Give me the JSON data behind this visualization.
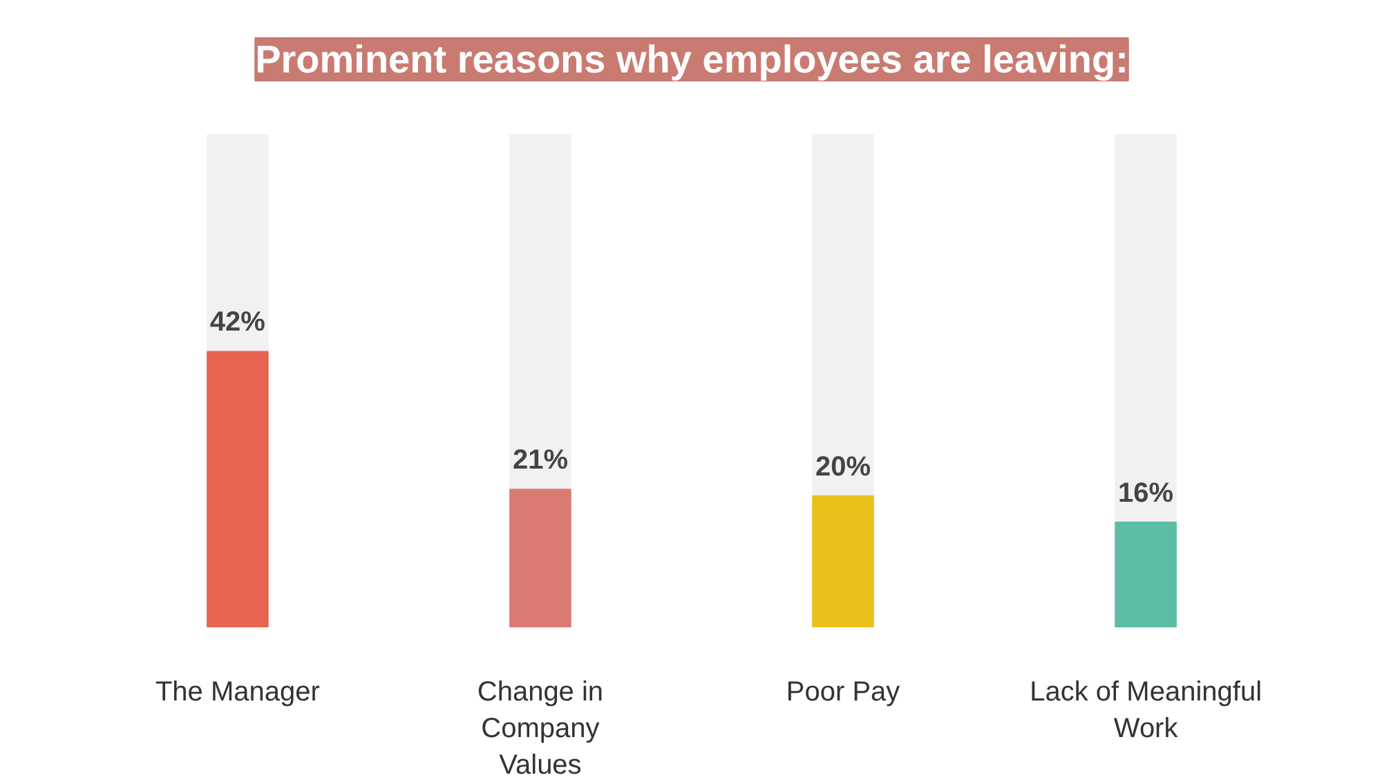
{
  "chart_data": {
    "type": "bar",
    "title": "Prominent reasons why employees are leaving:",
    "categories": [
      "The Manager",
      "Change in\nCompany\nValues",
      "Poor Pay",
      "Lack of Meaningful\nWork"
    ],
    "values": [
      42,
      21,
      20,
      16
    ],
    "colors": [
      "#e96352",
      "#d97b74",
      "#e8c21a",
      "#5bbda4"
    ],
    "value_labels": [
      "42%",
      "21%",
      "20%",
      "16%"
    ]
  }
}
